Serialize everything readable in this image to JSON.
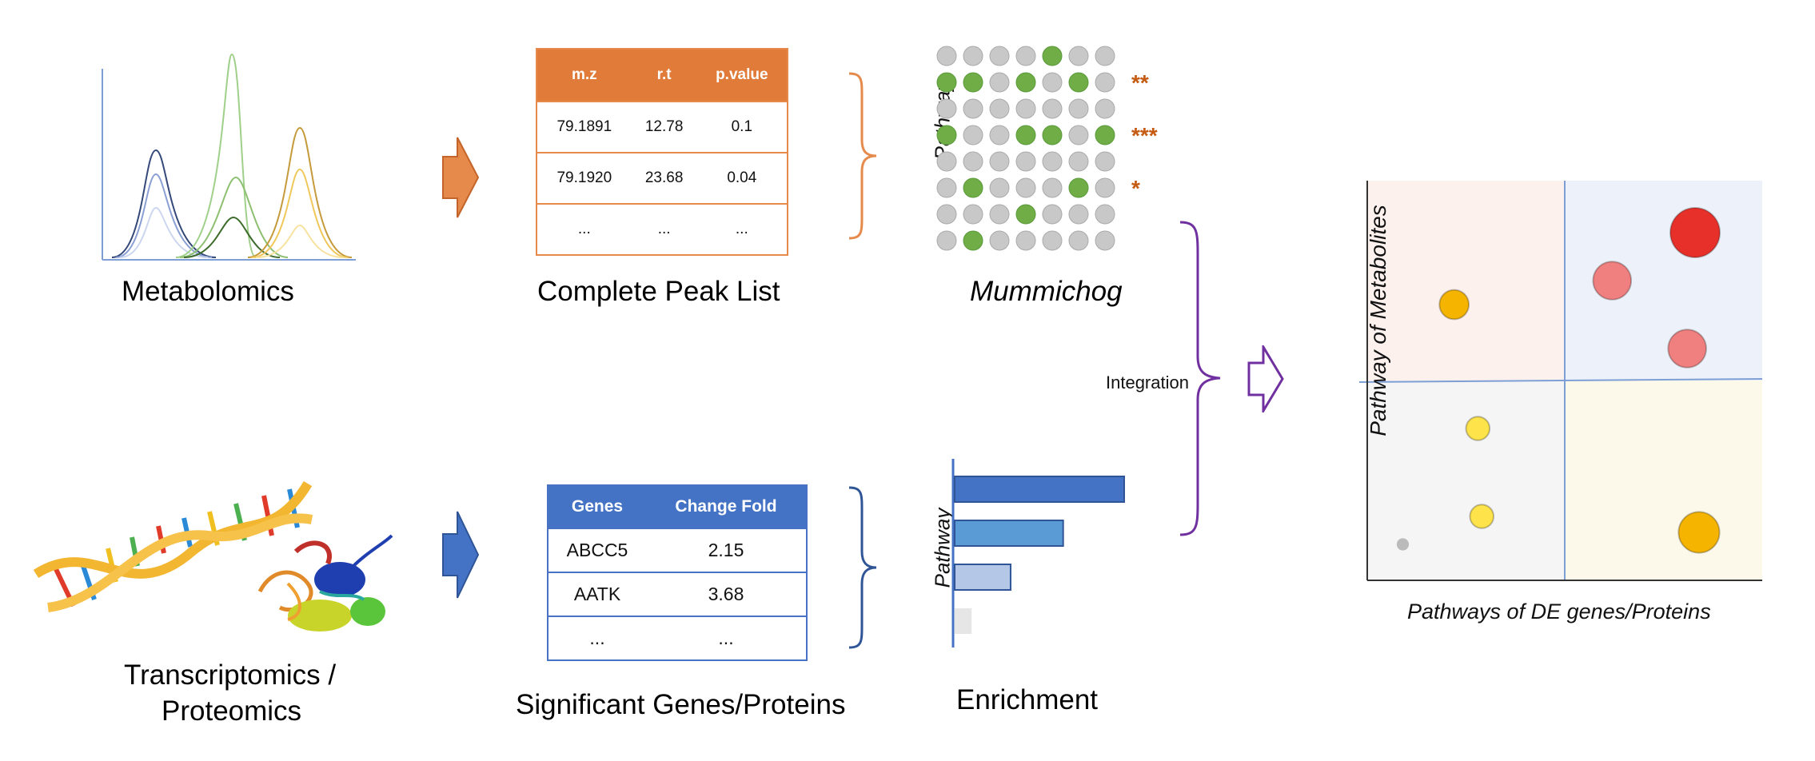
{
  "captions": {
    "metabolomics": "Metabolomics",
    "peak_list": "Complete Peak List",
    "mummichog": "Mummichog",
    "transcriptomics_line1": "Transcriptomics /",
    "transcriptomics_line2": "Proteomics",
    "significant": "Significant Genes/Proteins",
    "enrichment": "Enrichment",
    "integration": "Integration"
  },
  "peak_table": {
    "headers": [
      "m.z",
      "r.t",
      "p.value"
    ],
    "rows": [
      [
        "79.1891",
        "12.78",
        "0.1"
      ],
      [
        "79.1920",
        "23.68",
        "0.04"
      ],
      [
        "...",
        "...",
        "..."
      ]
    ]
  },
  "gene_table": {
    "headers": [
      "Genes",
      "Change Fold"
    ],
    "rows": [
      [
        "ABCC5",
        "2.15"
      ],
      [
        "AATK",
        "3.68"
      ],
      [
        "...",
        "..."
      ]
    ]
  },
  "mummichog_grid": {
    "axis_label": "Pathway",
    "rows": [
      [
        0,
        0,
        0,
        0,
        1,
        0,
        0
      ],
      [
        1,
        1,
        0,
        1,
        0,
        1,
        0
      ],
      [
        0,
        0,
        0,
        0,
        0,
        0,
        0
      ],
      [
        1,
        0,
        0,
        1,
        1,
        0,
        1
      ],
      [
        0,
        0,
        0,
        0,
        0,
        0,
        0
      ],
      [
        0,
        1,
        0,
        0,
        0,
        1,
        0
      ],
      [
        0,
        0,
        0,
        1,
        0,
        0,
        0
      ],
      [
        0,
        1,
        0,
        0,
        0,
        0,
        0
      ]
    ],
    "significance": [
      {
        "row": 1,
        "label": "**"
      },
      {
        "row": 3,
        "label": "***"
      },
      {
        "row": 5,
        "label": "*"
      }
    ],
    "colors": {
      "hit": "#70ad47",
      "miss": "#c8c8c8",
      "stars": "#c55a11"
    }
  },
  "enrichment": {
    "axis_label": "Pathway",
    "values": [
      1.0,
      0.64,
      0.33,
      0.1
    ],
    "colors": [
      "#4472c4",
      "#5b9bd5",
      "#b4c7e7",
      "#e7e6e6"
    ]
  },
  "integration_plot": {
    "xlabel": "Pathways of DE genes/Proteins",
    "ylabel": "Pathway of Metabolites",
    "quadrant_colors": [
      "#fdf1ee",
      "#edf2fa",
      "#f5f5f5",
      "#fdf9ea"
    ],
    "points": [
      {
        "x": 0.22,
        "y": 0.69,
        "size": 0.4,
        "color": "#f4b400"
      },
      {
        "x": 0.62,
        "y": 0.75,
        "size": 0.55,
        "color": "#f07f7f"
      },
      {
        "x": 0.83,
        "y": 0.87,
        "size": 0.75,
        "color": "#e8302a"
      },
      {
        "x": 0.81,
        "y": 0.58,
        "size": 0.55,
        "color": "#f07f7f"
      },
      {
        "x": 0.28,
        "y": 0.38,
        "size": 0.3,
        "color": "#ffe34a"
      },
      {
        "x": 0.29,
        "y": 0.16,
        "size": 0.3,
        "color": "#ffe34a"
      },
      {
        "x": 0.09,
        "y": 0.09,
        "size": 0.1,
        "color": "#bbbbbb"
      },
      {
        "x": 0.84,
        "y": 0.12,
        "size": 0.6,
        "color": "#f4b400"
      }
    ]
  },
  "colors": {
    "metabolomics_accent": "#e07b39",
    "genes_accent": "#4472c4",
    "integration_accent": "#7030a0"
  }
}
